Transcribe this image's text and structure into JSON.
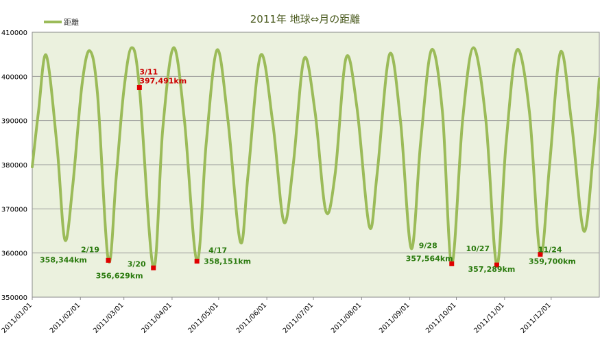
{
  "chart_data": {
    "type": "line",
    "title": "2011年 地球⇔月の距離",
    "legend": {
      "position": "top-left",
      "label": "距離"
    },
    "ylim": [
      350000,
      410000
    ],
    "yticks": [
      350000,
      360000,
      370000,
      380000,
      390000,
      400000,
      410000
    ],
    "ytick_labels": [
      "350000",
      "360000",
      "370000",
      "380000",
      "390000",
      "400000",
      "410000"
    ],
    "xlim": [
      "2011/01/01",
      "2012/01/01"
    ],
    "xtick_labels": [
      "2011/01/01",
      "2011/02/01",
      "2011/03/01",
      "2011/04/01",
      "2011/05/01",
      "2011/06/01",
      "2011/07/01",
      "2011/08/01",
      "2011/09/01",
      "2011/10/01",
      "2011/11/01",
      "2011/12/01"
    ],
    "grid": true,
    "colors": {
      "line": "#9bbb59",
      "plot_bg": "#ebf1de",
      "marker": "#e00000",
      "label_green": "#2a7a0e",
      "label_red": "#cc0000"
    },
    "series": [
      {
        "name": "距離",
        "points": [
          [
            "2011/01/01",
            379500
          ],
          [
            "2011/01/05",
            392000
          ],
          [
            "2011/01/10",
            404800
          ],
          [
            "2011/01/17",
            384000
          ],
          [
            "2011/01/22",
            363000
          ],
          [
            "2011/01/27",
            375000
          ],
          [
            "2011/02/02",
            398000
          ],
          [
            "2011/02/07",
            405800
          ],
          [
            "2011/02/12",
            396000
          ],
          [
            "2011/02/19",
            358344
          ],
          [
            "2011/02/24",
            377000
          ],
          [
            "2011/03/01",
            397000
          ],
          [
            "2011/03/06",
            406500
          ],
          [
            "2011/03/11",
            397491
          ],
          [
            "2011/03/20",
            356629
          ],
          [
            "2011/03/26",
            388000
          ],
          [
            "2011/04/02",
            406500
          ],
          [
            "2011/04/09",
            390000
          ],
          [
            "2011/04/17",
            358151
          ],
          [
            "2011/04/23",
            385000
          ],
          [
            "2011/04/30",
            406000
          ],
          [
            "2011/05/07",
            390000
          ],
          [
            "2011/05/15",
            362500
          ],
          [
            "2011/05/20",
            378000
          ],
          [
            "2011/05/28",
            404800
          ],
          [
            "2011/06/05",
            389000
          ],
          [
            "2011/06/12",
            367000
          ],
          [
            "2011/06/18",
            380000
          ],
          [
            "2011/06/25",
            404000
          ],
          [
            "2011/07/02",
            392000
          ],
          [
            "2011/07/09",
            369500
          ],
          [
            "2011/07/15",
            378000
          ],
          [
            "2011/07/22",
            404200
          ],
          [
            "2011/07/29",
            393000
          ],
          [
            "2011/08/06",
            366000
          ],
          [
            "2011/08/11",
            378000
          ],
          [
            "2011/08/19",
            405000
          ],
          [
            "2011/08/26",
            390000
          ],
          [
            "2011/09/02",
            361000
          ],
          [
            "2011/09/08",
            385000
          ],
          [
            "2011/09/15",
            406000
          ],
          [
            "2011/09/22",
            392000
          ],
          [
            "2011/09/28",
            357564
          ],
          [
            "2011/10/05",
            390000
          ],
          [
            "2011/10/12",
            406500
          ],
          [
            "2011/10/20",
            390000
          ],
          [
            "2011/10/27",
            357289
          ],
          [
            "2011/11/02",
            385000
          ],
          [
            "2011/11/09",
            406000
          ],
          [
            "2011/11/17",
            392000
          ],
          [
            "2011/11/24",
            359700
          ],
          [
            "2011/11/30",
            380000
          ],
          [
            "2011/12/07",
            405500
          ],
          [
            "2011/12/14",
            390000
          ],
          [
            "2011/12/22",
            365000
          ],
          [
            "2011/12/28",
            382000
          ],
          [
            "2012/01/01",
            399500
          ]
        ]
      }
    ],
    "annotations": [
      {
        "date": "2011/02/19",
        "value": 358344,
        "label_date": "2/19",
        "label_value": "358,344km",
        "color": "green"
      },
      {
        "date": "2011/03/11",
        "value": 397491,
        "label_date": "3/11",
        "label_value": "397,491km",
        "color": "red"
      },
      {
        "date": "2011/03/20",
        "value": 356629,
        "label_date": "3/20",
        "label_value": "356,629km",
        "color": "green"
      },
      {
        "date": "2011/04/17",
        "value": 358151,
        "label_date": "4/17",
        "label_value": "358,151km",
        "color": "green"
      },
      {
        "date": "2011/09/28",
        "value": 357564,
        "label_date": "9/28",
        "label_value": "357,564km",
        "color": "green"
      },
      {
        "date": "2011/10/27",
        "value": 357289,
        "label_date": "10/27",
        "label_value": "357,289km",
        "color": "green"
      },
      {
        "date": "2011/11/24",
        "value": 359700,
        "label_date": "11/24",
        "label_value": "359,700km",
        "color": "green"
      }
    ]
  }
}
